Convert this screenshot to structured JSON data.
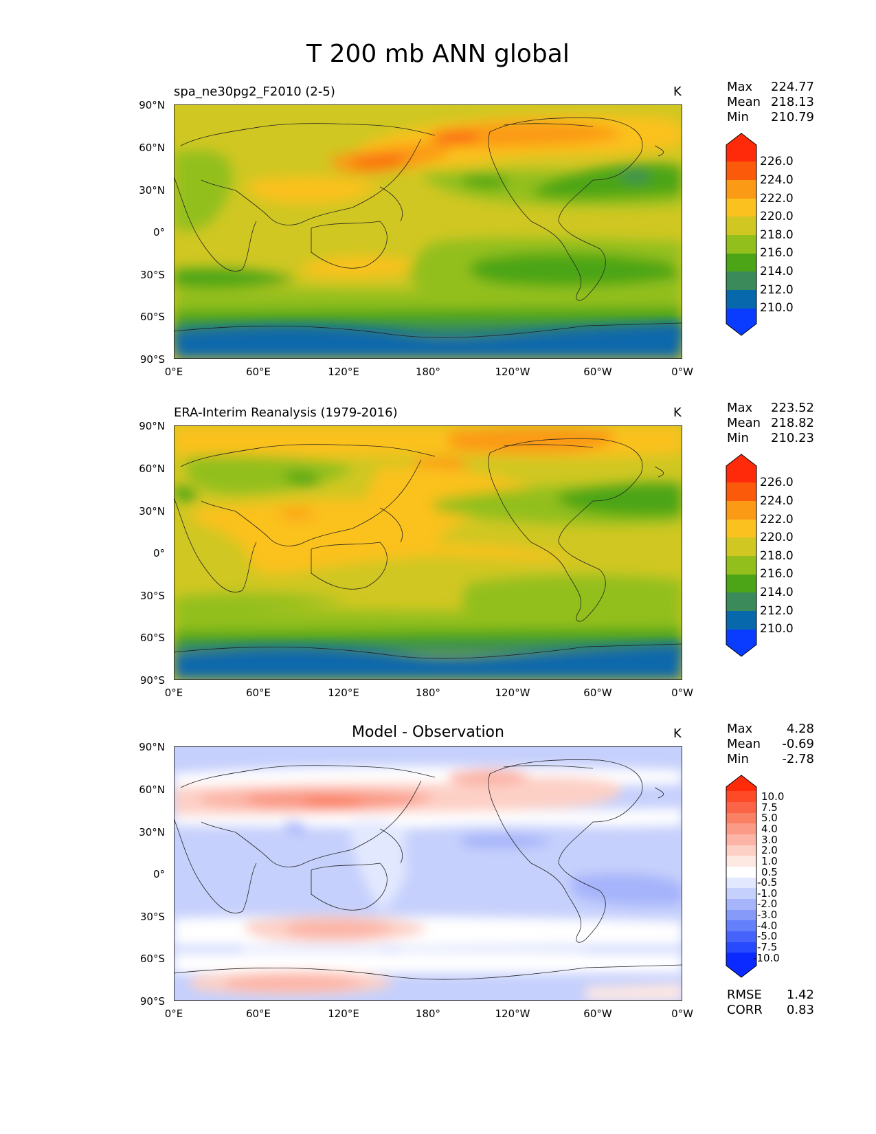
{
  "figure": {
    "title": "T 200 mb ANN global",
    "lat_ticks": [
      "90°N",
      "60°N",
      "30°N",
      "0°",
      "30°S",
      "60°S",
      "90°S"
    ],
    "lon_ticks": [
      "0°E",
      "60°E",
      "120°E",
      "180°",
      "120°W",
      "60°W",
      "0°W"
    ]
  },
  "panels": [
    {
      "title": "spa_ne30pg2_F2010 (2-5)",
      "units": "K",
      "stats": {
        "max_label": "Max",
        "max": "224.77",
        "mean_label": "Mean",
        "mean": "218.13",
        "min_label": "Min",
        "min": "210.79"
      },
      "colorbar": {
        "labels": [
          "226.0",
          "224.0",
          "222.0",
          "220.0",
          "218.0",
          "216.0",
          "214.0",
          "212.0",
          "210.0"
        ],
        "colors": [
          "#ff2a0a",
          "#fa5a0a",
          "#fb9a14",
          "#fbc11f",
          "#d0c723",
          "#93bf1d",
          "#4ca516",
          "#3a8a5a",
          "#0868ac",
          "#0a3cff"
        ]
      }
    },
    {
      "title": "ERA-Interim Reanalysis (1979-2016)",
      "units": "K",
      "stats": {
        "max_label": "Max",
        "max": "223.52",
        "mean_label": "Mean",
        "mean": "218.82",
        "min_label": "Min",
        "min": "210.23"
      },
      "colorbar": {
        "labels": [
          "226.0",
          "224.0",
          "222.0",
          "220.0",
          "218.0",
          "216.0",
          "214.0",
          "212.0",
          "210.0"
        ],
        "colors": [
          "#ff2a0a",
          "#fa5a0a",
          "#fb9a14",
          "#fbc11f",
          "#d0c723",
          "#93bf1d",
          "#4ca516",
          "#3a8a5a",
          "#0868ac",
          "#0a3cff"
        ]
      }
    },
    {
      "title": "Model - Observation",
      "units": "K",
      "stats": {
        "max_label": "Max",
        "max": "4.28",
        "mean_label": "Mean",
        "mean": "-0.69",
        "min_label": "Min",
        "min": "-2.78"
      },
      "metrics": {
        "rmse_label": "RMSE",
        "rmse": "1.42",
        "corr_label": "CORR",
        "corr": "0.83"
      },
      "colorbar": {
        "labels": [
          "10.0",
          "7.5",
          "5.0",
          "4.0",
          "3.0",
          "2.0",
          "1.0",
          "0.5",
          "-0.5",
          "-1.0",
          "-2.0",
          "-3.0",
          "-4.0",
          "-5.0",
          "-7.5",
          "-10.0"
        ],
        "colors": [
          "#ff2a0a",
          "#ff4a28",
          "#fb6446",
          "#fa8064",
          "#fb9a86",
          "#fcb4a6",
          "#fdd0c6",
          "#fee8e2",
          "#ffffff",
          "#e2e8fe",
          "#c6d0fc",
          "#a6b4fb",
          "#869afa",
          "#6480fa",
          "#4664fb",
          "#284aff",
          "#0a2aff"
        ]
      }
    }
  ]
}
